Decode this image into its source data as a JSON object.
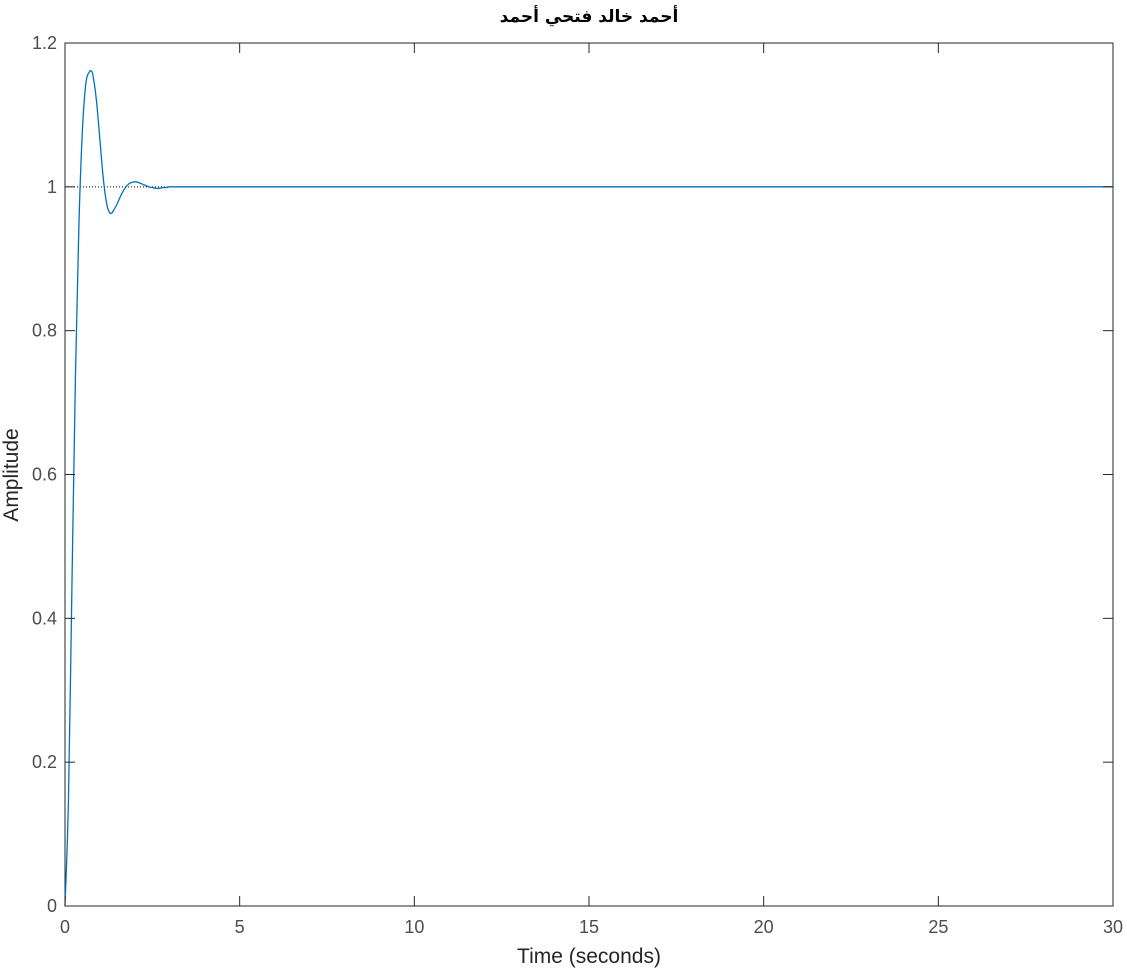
{
  "chart_data": {
    "type": "line",
    "title": "أحمد خالد فتحي أحمد",
    "xlabel": "Time (seconds)",
    "ylabel": "Amplitude",
    "xlim": [
      0,
      30
    ],
    "ylim": [
      0,
      1.2
    ],
    "xticks": [
      0,
      5,
      10,
      15,
      20,
      25,
      30
    ],
    "yticks": [
      0,
      0.2,
      0.4,
      0.6,
      0.8,
      1,
      1.2
    ],
    "xtick_labels": [
      "0",
      "5",
      "10",
      "15",
      "20",
      "25",
      "30"
    ],
    "ytick_labels": [
      "0",
      "0.2",
      "0.4",
      "0.6",
      "0.8",
      "1",
      "1.2"
    ],
    "grid": false,
    "series": [
      {
        "color": "#0072bd",
        "x": [
          0,
          0.1,
          0.2,
          0.3,
          0.4,
          0.5,
          0.6,
          0.7,
          0.75,
          0.8,
          0.9,
          1.0,
          1.1,
          1.2,
          1.3,
          1.4,
          1.5,
          1.6,
          1.7,
          1.8,
          1.9,
          2.0,
          2.1,
          2.2,
          2.3,
          2.4,
          2.5,
          2.6,
          2.7,
          2.8,
          2.9,
          3.0,
          3.2,
          3.5,
          4.0,
          5,
          10,
          15,
          20,
          25,
          30
        ],
        "y": [
          0,
          0.15,
          0.45,
          0.74,
          0.95,
          1.08,
          1.145,
          1.16,
          1.161,
          1.155,
          1.12,
          1.065,
          1.01,
          0.975,
          0.963,
          0.968,
          0.977,
          0.988,
          0.997,
          1.003,
          1.006,
          1.007,
          1.006,
          1.004,
          1.002,
          1.0,
          0.999,
          0.998,
          0.998,
          0.999,
          0.999,
          1.0,
          1.0,
          1.0,
          1.0,
          1.0,
          1.0,
          1.0,
          1.0,
          1.0,
          1.0
        ]
      }
    ],
    "reference_line": {
      "y": 1,
      "x_end": 3.3,
      "style": "dotted",
      "color": "#000000"
    }
  }
}
